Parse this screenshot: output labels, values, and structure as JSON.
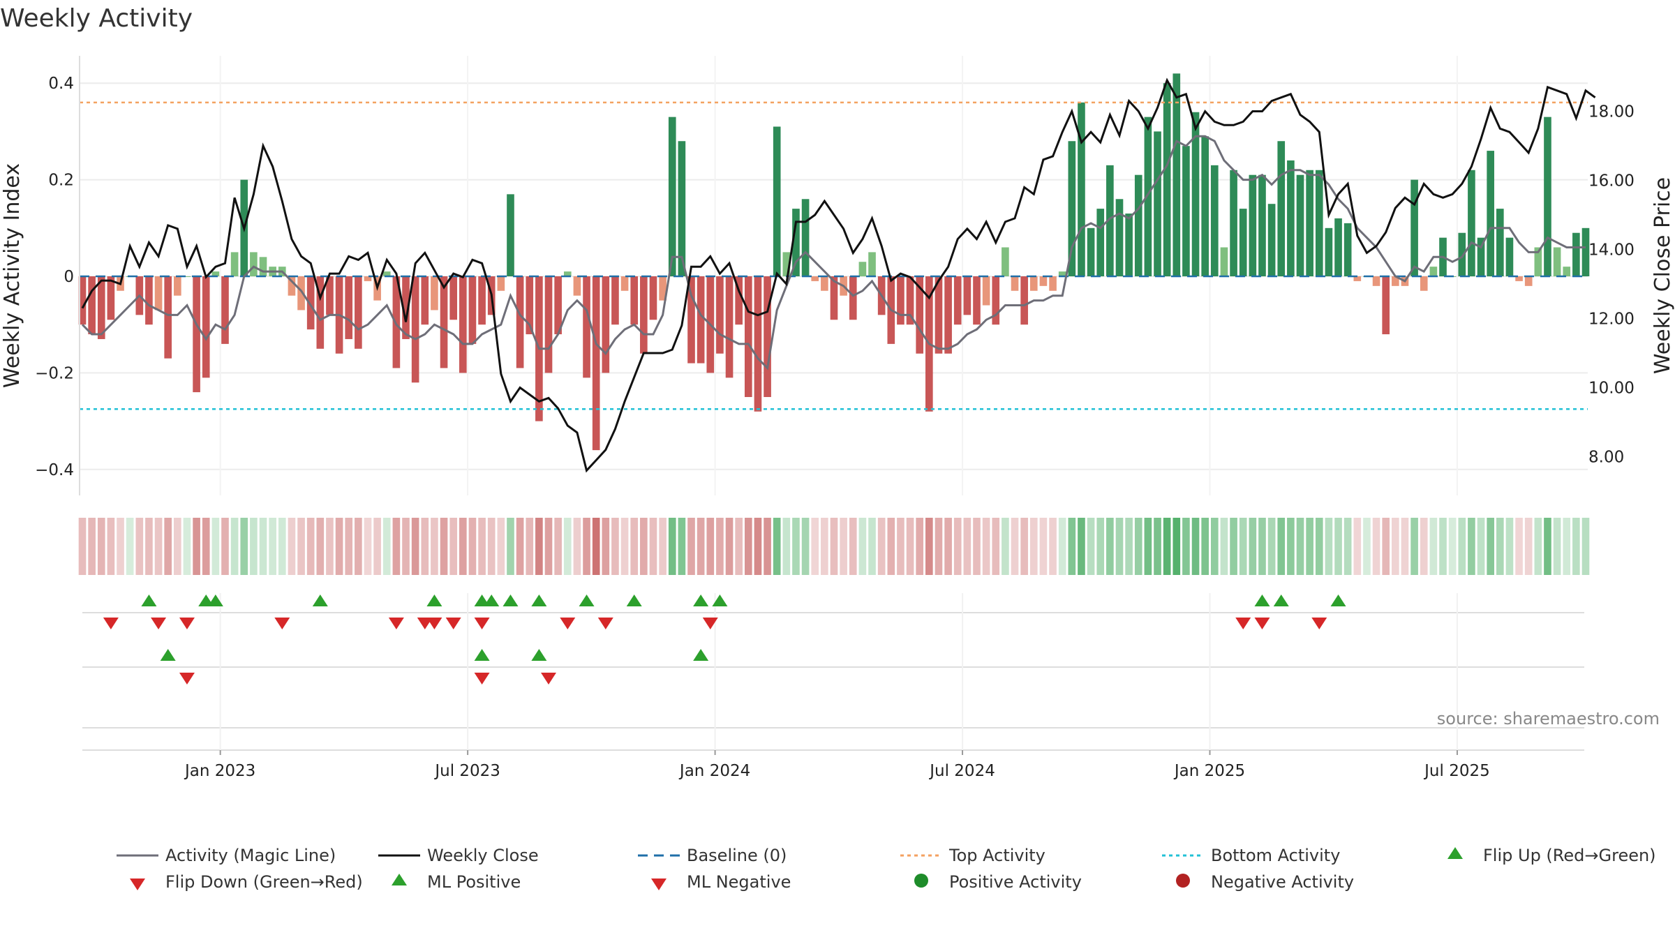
{
  "chart_data": {
    "type": "bar+line",
    "title": "Weekly Activity",
    "ylabel_left": "Weekly Activity Index",
    "ylabel_right": "Weekly Close Price",
    "source": "source: sharemaestro.com",
    "ylim_left": [
      -0.45,
      0.42
    ],
    "ylim_right": [
      6.9,
      19.3
    ],
    "yticks_left": [
      0.4,
      0.2,
      0,
      -0.2,
      -0.4
    ],
    "ytick_labels_left": [
      "0.4",
      "0.2",
      "0",
      "−0.2",
      "−0.4"
    ],
    "yticks_right": [
      18,
      16,
      14,
      12,
      10,
      8
    ],
    "ytick_labels_right": [
      "18.00",
      "16.00",
      "14.00",
      "12.00",
      "10.00",
      "8.00"
    ],
    "x_ticks": [
      {
        "week": 14.5,
        "label": "Jan 2023"
      },
      {
        "week": 40.5,
        "label": "Jul 2023"
      },
      {
        "week": 66.5,
        "label": "Jan 2024"
      },
      {
        "week": 92.5,
        "label": "Jul 2024"
      },
      {
        "week": 118.5,
        "label": "Jan 2025"
      },
      {
        "week": 144.5,
        "label": "Jul 2025"
      }
    ],
    "top_activity": 0.36,
    "bottom_activity": -0.275,
    "activity": [
      -0.1,
      -0.12,
      -0.13,
      -0.09,
      -0.03,
      0,
      -0.08,
      -0.1,
      -0.07,
      -0.17,
      -0.04,
      0,
      -0.24,
      -0.21,
      0.01,
      -0.14,
      0.05,
      0.2,
      0.05,
      0.04,
      0.02,
      0.02,
      -0.04,
      -0.07,
      -0.11,
      -0.15,
      -0.08,
      -0.16,
      -0.13,
      -0.15,
      -0.01,
      -0.05,
      0.01,
      -0.19,
      -0.13,
      -0.22,
      -0.1,
      -0.07,
      -0.19,
      -0.09,
      -0.2,
      -0.14,
      -0.1,
      -0.08,
      -0.03,
      0.17,
      -0.19,
      -0.12,
      -0.3,
      -0.2,
      -0.12,
      0.01,
      -0.04,
      -0.21,
      -0.36,
      -0.2,
      -0.1,
      -0.03,
      -0.1,
      -0.16,
      -0.09,
      -0.05,
      0.33,
      0.28,
      -0.18,
      -0.18,
      -0.2,
      -0.16,
      -0.21,
      -0.1,
      -0.25,
      -0.28,
      -0.25,
      0.31,
      0.05,
      0.14,
      0.16,
      -0.01,
      -0.03,
      -0.09,
      -0.04,
      -0.09,
      0.03,
      0.05,
      -0.08,
      -0.14,
      -0.1,
      -0.1,
      -0.16,
      -0.28,
      -0.16,
      -0.16,
      -0.1,
      -0.08,
      -0.1,
      -0.06,
      -0.1,
      0.06,
      -0.03,
      -0.1,
      -0.03,
      -0.02,
      -0.03,
      0.01,
      0.28,
      0.36,
      0.1,
      0.14,
      0.23,
      0.16,
      0.13,
      0.21,
      0.33,
      0.3,
      0.4,
      0.42,
      0.27,
      0.34,
      0.29,
      0.23,
      0.06,
      0.22,
      0.14,
      0.21,
      0.21,
      0.15,
      0.28,
      0.24,
      0.21,
      0.22,
      0.22,
      0.1,
      0.12,
      0.11,
      -0.01,
      0,
      -0.02,
      -0.12,
      -0.02,
      -0.02,
      0.2,
      -0.03,
      0.02,
      0.08,
      0,
      0.09,
      0.22,
      0.08,
      0.26,
      0.14,
      0.08,
      -0.01,
      -0.02,
      0.06,
      0.33,
      0.06,
      0.02,
      0.09,
      0.1
    ],
    "magic_line": [
      -0.1,
      -0.12,
      -0.12,
      -0.1,
      -0.08,
      -0.06,
      -0.04,
      -0.06,
      -0.07,
      -0.08,
      -0.08,
      -0.06,
      -0.1,
      -0.13,
      -0.1,
      -0.11,
      -0.08,
      0,
      0.02,
      0.01,
      0.01,
      0.01,
      -0.01,
      -0.03,
      -0.06,
      -0.09,
      -0.08,
      -0.08,
      -0.09,
      -0.11,
      -0.1,
      -0.08,
      -0.06,
      -0.1,
      -0.12,
      -0.13,
      -0.12,
      -0.1,
      -0.11,
      -0.12,
      -0.14,
      -0.14,
      -0.12,
      -0.11,
      -0.1,
      -0.04,
      -0.08,
      -0.1,
      -0.15,
      -0.15,
      -0.12,
      -0.07,
      -0.05,
      -0.07,
      -0.14,
      -0.16,
      -0.13,
      -0.11,
      -0.1,
      -0.12,
      -0.12,
      -0.08,
      0.04,
      0.04,
      -0.04,
      -0.08,
      -0.1,
      -0.12,
      -0.13,
      -0.14,
      -0.14,
      -0.17,
      -0.19,
      -0.07,
      -0.02,
      0.03,
      0.05,
      0.03,
      0.01,
      -0.01,
      -0.02,
      -0.04,
      -0.03,
      -0.01,
      -0.04,
      -0.07,
      -0.08,
      -0.08,
      -0.11,
      -0.14,
      -0.15,
      -0.15,
      -0.14,
      -0.12,
      -0.11,
      -0.09,
      -0.08,
      -0.06,
      -0.06,
      -0.06,
      -0.05,
      -0.05,
      -0.04,
      -0.04,
      0.06,
      0.1,
      0.11,
      0.1,
      0.12,
      0.13,
      0.12,
      0.14,
      0.17,
      0.2,
      0.23,
      0.28,
      0.27,
      0.29,
      0.29,
      0.28,
      0.24,
      0.22,
      0.2,
      0.2,
      0.21,
      0.19,
      0.21,
      0.22,
      0.22,
      0.21,
      0.21,
      0.19,
      0.16,
      0.14,
      0.1,
      0.08,
      0.06,
      0.03,
      0,
      -0.01,
      0.02,
      0.01,
      0.04,
      0.04,
      0.03,
      0.04,
      0.07,
      0.06,
      0.1,
      0.1,
      0.1,
      0.07,
      0.05,
      0.05,
      0.08,
      0.07,
      0.06,
      0.06,
      0.06
    ],
    "weekly_close": [
      12.3,
      12.8,
      13.1,
      13.1,
      13.0,
      14.1,
      13.5,
      14.2,
      13.8,
      14.7,
      14.6,
      13.5,
      14.1,
      13.2,
      13.5,
      13.6,
      15.5,
      14.6,
      15.6,
      17.0,
      16.4,
      15.4,
      14.3,
      13.8,
      13.6,
      12.6,
      13.3,
      13.3,
      13.8,
      13.7,
      13.9,
      12.9,
      13.7,
      13.3,
      11.9,
      13.6,
      13.9,
      13.4,
      12.9,
      13.3,
      13.2,
      13.7,
      13.6,
      12.7,
      10.4,
      9.6,
      10.0,
      9.8,
      9.6,
      9.7,
      9.4,
      8.9,
      8.7,
      7.6,
      7.9,
      8.2,
      8.8,
      9.6,
      10.3,
      11.0,
      11.0,
      11.0,
      11.1,
      11.8,
      13.5,
      13.5,
      13.8,
      13.3,
      13.6,
      12.8,
      12.2,
      12.1,
      12.2,
      13.3,
      13.0,
      14.8,
      14.8,
      15.0,
      15.4,
      15.0,
      14.6,
      13.9,
      14.3,
      14.9,
      14.1,
      13.1,
      13.3,
      13.2,
      12.9,
      12.6,
      13.1,
      13.5,
      14.3,
      14.6,
      14.3,
      14.8,
      14.2,
      14.8,
      14.9,
      15.8,
      15.6,
      16.6,
      16.7,
      17.4,
      18.0,
      17.1,
      17.4,
      17.1,
      17.9,
      17.3,
      18.3,
      18.0,
      17.5,
      18.1,
      18.9,
      18.4,
      18.5,
      17.5,
      18.0,
      17.7,
      17.6,
      17.6,
      17.7,
      18.0,
      18.0,
      18.3,
      18.4,
      18.5,
      17.9,
      17.7,
      17.4,
      15.0,
      15.6,
      15.9,
      14.4,
      13.9,
      14.1,
      14.5,
      15.2,
      15.5,
      15.3,
      15.9,
      15.6,
      15.5,
      15.6,
      15.9,
      16.4,
      17.2,
      18.1,
      17.5,
      17.4,
      17.1,
      16.8,
      17.5,
      18.7,
      18.6,
      18.5,
      17.8,
      18.6,
      18.4
    ],
    "flip_up_weeks": [
      7,
      13,
      14,
      25,
      37,
      42,
      43,
      45,
      48,
      53,
      58,
      65,
      67,
      124,
      126,
      132
    ],
    "flip_down_weeks": [
      3,
      8,
      11,
      21,
      33,
      36,
      37,
      39,
      42,
      51,
      55,
      66,
      122,
      124,
      130
    ],
    "ml_positive_weeks": [
      9,
      42,
      48,
      65
    ],
    "ml_negative_weeks": [
      11,
      42,
      49
    ],
    "legend": [
      "Activity (Magic Line)",
      "Weekly Close",
      "Baseline (0)",
      "Top Activity",
      "Bottom Activity",
      "Flip Up (Red→Green)",
      "Flip Down (Green→Red)",
      "ML Positive",
      "ML Negative",
      "Positive Activity",
      "Negative Activity"
    ],
    "colors": {
      "pos_dark": "#2e8b57",
      "pos_light": "#7fbf7f",
      "neg_dark": "#c85656",
      "neg_light": "#e8967a",
      "magic": "#6e6e78",
      "close": "#111111",
      "baseline": "#1f6fa8",
      "top": "#f4a261",
      "bottom": "#22c1d6",
      "up": "#2ca02c",
      "down": "#d62728",
      "legend_pos_dot": "#1e8c2a",
      "legend_neg_dot": "#b22222"
    }
  }
}
